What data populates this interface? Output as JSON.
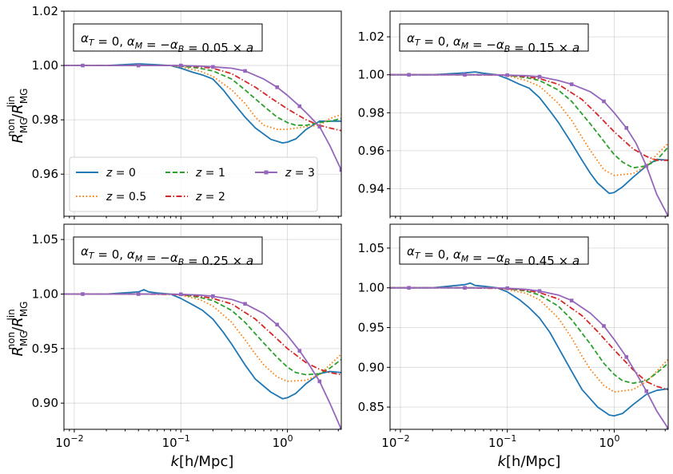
{
  "figure": {
    "ylabel": "R_MG^non / R_MG^lin",
    "xlabel": "k[h/Mpc]",
    "colors": {
      "z0": "#1f77b4",
      "z05": "#ff7f0e",
      "z1": "#2ca02c",
      "z2": "#d62728",
      "z3": "#9467bd"
    }
  },
  "chart_data": [
    {
      "type": "line",
      "annotation": "α_T = 0, α_M = −α_B = 0.05 × a",
      "xscale": "log",
      "xlim": [
        0.008,
        3.2
      ],
      "ylim": [
        0.9445,
        1.02
      ],
      "yticks": [
        0.96,
        0.98,
        1.0,
        1.02
      ],
      "ytick_labels": [
        "0.96",
        "0.98",
        "1.00",
        "1.02"
      ],
      "grid": true,
      "legend": "lower-left",
      "series": [
        {
          "name": "z = 0",
          "style": "solid",
          "color": "#1f77b4",
          "x": [
            0.008,
            0.02,
            0.04,
            0.06,
            0.08,
            0.1,
            0.13,
            0.16,
            0.2,
            0.25,
            0.3,
            0.4,
            0.5,
            0.7,
            0.9,
            1.0,
            1.2,
            1.5,
            2,
            2.5,
            3.2
          ],
          "y": [
            1.0,
            1.0,
            1.0006,
            1.0003,
            1.0,
            0.999,
            0.9975,
            0.9965,
            0.995,
            0.991,
            0.987,
            0.981,
            0.977,
            0.9728,
            0.9715,
            0.9718,
            0.973,
            0.9765,
            0.9795,
            0.9795,
            0.9795
          ]
        },
        {
          "name": "z = 0.5",
          "style": "dotted",
          "color": "#ff7f0e",
          "x": [
            0.008,
            0.04,
            0.08,
            0.1,
            0.15,
            0.2,
            0.3,
            0.4,
            0.5,
            0.6,
            0.8,
            1.0,
            1.5,
            2,
            2.5,
            3.2
          ],
          "y": [
            1.0,
            1.0,
            1.0,
            0.9995,
            0.998,
            0.996,
            0.991,
            0.986,
            0.981,
            0.978,
            0.9765,
            0.9765,
            0.9775,
            0.978,
            0.9805,
            0.982
          ]
        },
        {
          "name": "z = 1",
          "style": "dashed",
          "color": "#2ca02c",
          "x": [
            0.008,
            0.04,
            0.08,
            0.1,
            0.15,
            0.2,
            0.3,
            0.4,
            0.6,
            0.8,
            1.0,
            1.2,
            1.5,
            2,
            2.5,
            3.2
          ],
          "y": [
            1.0,
            1.0,
            1.0,
            0.9998,
            0.999,
            0.998,
            0.995,
            0.991,
            0.985,
            0.981,
            0.979,
            0.978,
            0.978,
            0.979,
            0.9795,
            0.9805
          ]
        },
        {
          "name": "z = 2",
          "style": "dashdot",
          "color": "#d62728",
          "x": [
            0.008,
            0.04,
            0.1,
            0.15,
            0.2,
            0.3,
            0.5,
            0.7,
            1.0,
            1.5,
            2,
            2.5,
            3.2
          ],
          "y": [
            1.0,
            1.0,
            1.0,
            0.9995,
            0.999,
            0.997,
            0.992,
            0.988,
            0.984,
            0.98,
            0.978,
            0.977,
            0.976
          ]
        },
        {
          "name": "z = 3",
          "style": "solid-marker",
          "color": "#9467bd",
          "x": [
            0.008,
            0.012,
            0.02,
            0.04,
            0.07,
            0.1,
            0.15,
            0.2,
            0.3,
            0.4,
            0.6,
            0.8,
            1.0,
            1.3,
            1.6,
            2.0,
            2.5,
            3.2
          ],
          "y": [
            1.0,
            1.0,
            1.0,
            1.0,
            1.0,
            1.0,
            0.9998,
            0.9995,
            0.999,
            0.998,
            0.995,
            0.992,
            0.989,
            0.985,
            0.9815,
            0.9775,
            0.9705,
            0.9615
          ]
        }
      ]
    },
    {
      "type": "line",
      "annotation": "α_T = 0, α_M = −α_B = 0.15 × a",
      "xscale": "log",
      "xlim": [
        0.008,
        3.2
      ],
      "ylim": [
        0.9255,
        1.0335
      ],
      "yticks": [
        0.94,
        0.96,
        0.98,
        1.0,
        1.02
      ],
      "ytick_labels": [
        "0.94",
        "0.96",
        "0.98",
        "1.00",
        "1.02"
      ],
      "grid": true,
      "series": [
        {
          "name": "z = 0",
          "style": "solid",
          "color": "#1f77b4",
          "x": [
            0.008,
            0.02,
            0.04,
            0.05,
            0.06,
            0.08,
            0.1,
            0.13,
            0.16,
            0.2,
            0.25,
            0.3,
            0.4,
            0.5,
            0.6,
            0.7,
            0.9,
            1.0,
            1.2,
            1.5,
            2,
            2.5,
            3.2
          ],
          "y": [
            1.0,
            1.0,
            1.001,
            1.0015,
            1.0008,
            1.0,
            0.998,
            0.995,
            0.993,
            0.988,
            0.981,
            0.975,
            0.964,
            0.955,
            0.948,
            0.943,
            0.9375,
            0.938,
            0.941,
            0.946,
            0.952,
            0.9555,
            0.955
          ]
        },
        {
          "name": "z = 0.5",
          "style": "dotted",
          "color": "#ff7f0e",
          "x": [
            0.008,
            0.04,
            0.08,
            0.1,
            0.15,
            0.2,
            0.3,
            0.4,
            0.5,
            0.6,
            0.8,
            1.0,
            1.5,
            2,
            2.5,
            3.2
          ],
          "y": [
            1.0,
            1.0,
            1.0,
            0.9995,
            0.997,
            0.994,
            0.985,
            0.976,
            0.967,
            0.96,
            0.95,
            0.947,
            0.948,
            0.952,
            0.958,
            0.964
          ]
        },
        {
          "name": "z = 1",
          "style": "dashed",
          "color": "#2ca02c",
          "x": [
            0.008,
            0.04,
            0.08,
            0.1,
            0.15,
            0.2,
            0.3,
            0.4,
            0.6,
            0.8,
            1.0,
            1.2,
            1.5,
            2,
            2.5,
            3.2
          ],
          "y": [
            1.0,
            1.0,
            1.0,
            0.9998,
            0.9985,
            0.997,
            0.992,
            0.986,
            0.974,
            0.965,
            0.958,
            0.954,
            0.951,
            0.952,
            0.955,
            0.962
          ]
        },
        {
          "name": "z = 2",
          "style": "dashdot",
          "color": "#d62728",
          "x": [
            0.008,
            0.04,
            0.1,
            0.15,
            0.2,
            0.3,
            0.5,
            0.7,
            1.0,
            1.5,
            2,
            2.5,
            3.2
          ],
          "y": [
            1.0,
            1.0,
            0.9998,
            0.999,
            0.998,
            0.995,
            0.987,
            0.979,
            0.97,
            0.961,
            0.957,
            0.955,
            0.955
          ]
        },
        {
          "name": "z = 3",
          "style": "solid-marker",
          "color": "#9467bd",
          "x": [
            0.008,
            0.012,
            0.02,
            0.04,
            0.07,
            0.1,
            0.15,
            0.2,
            0.3,
            0.4,
            0.6,
            0.8,
            1.0,
            1.3,
            1.6,
            2.0,
            2.5,
            3.2
          ],
          "y": [
            1.0,
            1.0,
            1.0,
            1.0,
            1.0,
            0.9998,
            0.9995,
            0.999,
            0.997,
            0.995,
            0.991,
            0.986,
            0.98,
            0.972,
            0.964,
            0.952,
            0.937,
            0.9255
          ]
        }
      ]
    },
    {
      "type": "line",
      "annotation": "α_T = 0, α_M = −α_B = 0.25 × a",
      "xscale": "log",
      "xlim": [
        0.008,
        3.2
      ],
      "ylim": [
        0.876,
        1.064
      ],
      "yticks": [
        0.9,
        0.95,
        1.0,
        1.05
      ],
      "ytick_labels": [
        "0.90",
        "0.95",
        "1.00",
        "1.05"
      ],
      "grid": true,
      "series": [
        {
          "name": "z = 0",
          "style": "solid",
          "color": "#1f77b4",
          "x": [
            0.008,
            0.02,
            0.04,
            0.045,
            0.05,
            0.06,
            0.08,
            0.1,
            0.13,
            0.16,
            0.2,
            0.25,
            0.3,
            0.4,
            0.5,
            0.7,
            0.9,
            1.0,
            1.2,
            1.5,
            2,
            2.5,
            3.2
          ],
          "y": [
            1.0,
            1.0,
            1.002,
            1.004,
            1.002,
            1.001,
            1.0,
            0.996,
            0.99,
            0.985,
            0.977,
            0.965,
            0.954,
            0.935,
            0.922,
            0.91,
            0.904,
            0.905,
            0.909,
            0.918,
            0.927,
            0.929,
            0.928
          ]
        },
        {
          "name": "z = 0.5",
          "style": "dotted",
          "color": "#ff7f0e",
          "x": [
            0.008,
            0.04,
            0.08,
            0.1,
            0.15,
            0.2,
            0.3,
            0.4,
            0.5,
            0.6,
            0.8,
            1.0,
            1.5,
            2,
            2.5,
            3.2
          ],
          "y": [
            1.0,
            1.0,
            1.0,
            0.999,
            0.995,
            0.989,
            0.974,
            0.958,
            0.945,
            0.935,
            0.924,
            0.92,
            0.921,
            0.926,
            0.935,
            0.945
          ]
        },
        {
          "name": "z = 1",
          "style": "dashed",
          "color": "#2ca02c",
          "x": [
            0.008,
            0.04,
            0.08,
            0.1,
            0.15,
            0.2,
            0.3,
            0.4,
            0.6,
            0.8,
            1.0,
            1.2,
            1.5,
            2,
            2.5,
            3.2
          ],
          "y": [
            1.0,
            1.0,
            1.0,
            0.9995,
            0.997,
            0.994,
            0.985,
            0.974,
            0.955,
            0.942,
            0.933,
            0.928,
            0.926,
            0.927,
            0.932,
            0.94
          ]
        },
        {
          "name": "z = 2",
          "style": "dashdot",
          "color": "#d62728",
          "x": [
            0.008,
            0.04,
            0.1,
            0.15,
            0.2,
            0.3,
            0.5,
            0.7,
            1.0,
            1.5,
            2,
            2.5,
            3.2
          ],
          "y": [
            1.0,
            1.0,
            0.9995,
            0.998,
            0.996,
            0.991,
            0.977,
            0.964,
            0.95,
            0.937,
            0.931,
            0.928,
            0.926
          ]
        },
        {
          "name": "z = 3",
          "style": "solid-marker",
          "color": "#9467bd",
          "x": [
            0.008,
            0.012,
            0.02,
            0.04,
            0.07,
            0.1,
            0.15,
            0.2,
            0.3,
            0.4,
            0.6,
            0.8,
            1.0,
            1.3,
            1.6,
            2.0,
            2.5,
            3.2
          ],
          "y": [
            1.0,
            1.0,
            1.0,
            1.0,
            1.0,
            0.9998,
            0.999,
            0.998,
            0.995,
            0.991,
            0.982,
            0.972,
            0.962,
            0.948,
            0.935,
            0.92,
            0.9,
            0.876
          ]
        }
      ]
    },
    {
      "type": "line",
      "annotation": "α_T = 0, α_M = −α_B = 0.45 × a",
      "xscale": "log",
      "xlim": [
        0.008,
        3.2
      ],
      "ylim": [
        0.822,
        1.08
      ],
      "yticks": [
        0.85,
        0.9,
        0.95,
        1.0,
        1.05
      ],
      "ytick_labels": [
        "0.85",
        "0.90",
        "0.95",
        "1.00",
        "1.05"
      ],
      "grid": true,
      "series": [
        {
          "name": "z = 0",
          "style": "solid",
          "color": "#1f77b4",
          "x": [
            0.008,
            0.02,
            0.04,
            0.045,
            0.05,
            0.06,
            0.08,
            0.1,
            0.13,
            0.16,
            0.2,
            0.25,
            0.3,
            0.4,
            0.5,
            0.7,
            0.9,
            1.0,
            1.2,
            1.5,
            2,
            2.5,
            3.2
          ],
          "y": [
            1.0,
            1.0,
            1.004,
            1.006,
            1.003,
            1.002,
            1.0,
            0.995,
            0.985,
            0.975,
            0.962,
            0.944,
            0.925,
            0.895,
            0.872,
            0.85,
            0.84,
            0.839,
            0.842,
            0.853,
            0.866,
            0.871,
            0.873
          ]
        },
        {
          "name": "z = 0.5",
          "style": "dotted",
          "color": "#ff7f0e",
          "x": [
            0.008,
            0.04,
            0.08,
            0.1,
            0.15,
            0.2,
            0.3,
            0.4,
            0.5,
            0.6,
            0.8,
            1.0,
            1.5,
            2,
            2.5,
            3.2
          ],
          "y": [
            1.0,
            1.0,
            1.0,
            0.998,
            0.993,
            0.985,
            0.962,
            0.937,
            0.914,
            0.897,
            0.877,
            0.869,
            0.872,
            0.882,
            0.895,
            0.91
          ]
        },
        {
          "name": "z = 1",
          "style": "dashed",
          "color": "#2ca02c",
          "x": [
            0.008,
            0.04,
            0.08,
            0.1,
            0.15,
            0.2,
            0.3,
            0.4,
            0.6,
            0.8,
            1.0,
            1.2,
            1.5,
            2,
            2.5,
            3.2
          ],
          "y": [
            1.0,
            1.0,
            1.0,
            0.999,
            0.996,
            0.991,
            0.977,
            0.96,
            0.929,
            0.905,
            0.891,
            0.883,
            0.88,
            0.883,
            0.893,
            0.905
          ]
        },
        {
          "name": "z = 2",
          "style": "dashdot",
          "color": "#d62728",
          "x": [
            0.008,
            0.04,
            0.1,
            0.15,
            0.2,
            0.3,
            0.5,
            0.7,
            1.0,
            1.5,
            2,
            2.5,
            3.2
          ],
          "y": [
            1.0,
            1.0,
            0.999,
            0.997,
            0.994,
            0.986,
            0.965,
            0.945,
            0.922,
            0.897,
            0.882,
            0.876,
            0.872
          ]
        },
        {
          "name": "z = 3",
          "style": "solid-marker",
          "color": "#9467bd",
          "x": [
            0.008,
            0.012,
            0.02,
            0.04,
            0.07,
            0.1,
            0.15,
            0.2,
            0.3,
            0.4,
            0.6,
            0.8,
            1.0,
            1.3,
            1.6,
            2.0,
            2.5,
            3.2
          ],
          "y": [
            1.0,
            1.0,
            1.0,
            1.0,
            1.0,
            0.9995,
            0.998,
            0.996,
            0.991,
            0.984,
            0.968,
            0.952,
            0.935,
            0.913,
            0.893,
            0.87,
            0.845,
            0.823
          ]
        }
      ]
    }
  ],
  "xticks": {
    "values": [
      0.01,
      0.1,
      1
    ],
    "base": "10",
    "exponents": [
      "−2",
      "−1",
      "0"
    ]
  }
}
